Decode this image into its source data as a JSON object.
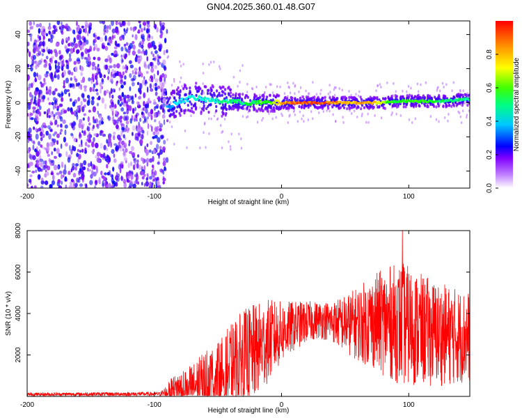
{
  "figure": {
    "title": "GN04.2025.360.01.48.G07"
  },
  "chart_data": [
    {
      "type": "heatmap",
      "title": "GN04.2025.360.01.48.G07",
      "xlabel": "Height of straight line (km)",
      "ylabel": "Frequency (Hz)",
      "xlim": [
        -200,
        148
      ],
      "ylim": [
        -50,
        48
      ],
      "xticks": [
        -200,
        -100,
        0,
        100
      ],
      "yticks": [
        -40,
        -20,
        0,
        20,
        40
      ],
      "colorbar": {
        "label": "Normalized spectral amplitude",
        "range": [
          0,
          1
        ],
        "ticks": [
          0.0,
          0.2,
          0.4,
          0.6,
          0.8
        ],
        "tick_labels": [
          "0.0",
          "0.2",
          "0.4",
          "0.6",
          "0.8"
        ],
        "colormap": [
          "#ffffff",
          "#8000ff",
          "#0000ff",
          "#00ffff",
          "#00ff00",
          "#ffff00",
          "#ff8000",
          "#ff0000"
        ]
      },
      "regions": [
        {
          "name": "noise",
          "x_range": [
            -200,
            -90
          ],
          "freq_range": [
            -50,
            48
          ],
          "amplitude": 0.15
        },
        {
          "name": "signal-band",
          "x_range": [
            -90,
            148
          ],
          "center_freq": 0,
          "amplitude": 0.3
        }
      ],
      "ridge": [
        {
          "x": -88,
          "freq": -2,
          "amp": 0.4
        },
        {
          "x": -80,
          "freq": 1,
          "amp": 0.45
        },
        {
          "x": -70,
          "freq": 3,
          "amp": 0.48
        },
        {
          "x": -60,
          "freq": 2,
          "amp": 0.5
        },
        {
          "x": -50,
          "freq": 1,
          "amp": 0.5
        },
        {
          "x": -40,
          "freq": 1,
          "amp": 0.55
        },
        {
          "x": -30,
          "freq": 0,
          "amp": 0.55
        },
        {
          "x": -20,
          "freq": 0,
          "amp": 0.6
        },
        {
          "x": -10,
          "freq": 0,
          "amp": 0.65
        },
        {
          "x": 0,
          "freq": 0,
          "amp": 0.85
        },
        {
          "x": 10,
          "freq": 0,
          "amp": 0.95
        },
        {
          "x": 20,
          "freq": 0,
          "amp": 1.0
        },
        {
          "x": 30,
          "freq": 0,
          "amp": 0.98
        },
        {
          "x": 40,
          "freq": 0,
          "amp": 0.92
        },
        {
          "x": 50,
          "freq": 0,
          "amp": 0.85
        },
        {
          "x": 60,
          "freq": 0,
          "amp": 0.88
        },
        {
          "x": 70,
          "freq": 0,
          "amp": 0.9
        },
        {
          "x": 80,
          "freq": 0,
          "amp": 0.7
        },
        {
          "x": 90,
          "freq": 1,
          "amp": 0.6
        },
        {
          "x": 100,
          "freq": 1,
          "amp": 0.62
        },
        {
          "x": 110,
          "freq": 1,
          "amp": 0.65
        },
        {
          "x": 120,
          "freq": 1,
          "amp": 0.6
        },
        {
          "x": 130,
          "freq": 1,
          "amp": 0.55
        },
        {
          "x": 140,
          "freq": 2,
          "amp": 0.55
        },
        {
          "x": 148,
          "freq": 2,
          "amp": 0.5
        }
      ]
    },
    {
      "type": "line",
      "xlabel": "Height of straight line (km)",
      "ylabel": "SNR (10 * v/v)",
      "xlim": [
        -200,
        148
      ],
      "ylim": [
        0,
        8000
      ],
      "xticks": [
        -200,
        -100,
        0,
        100
      ],
      "yticks": [
        2000,
        4000,
        6000,
        8000
      ],
      "series": [
        {
          "name": "SNR",
          "color": "#ff0000",
          "envelope": [
            {
              "x": -200,
              "base": 100,
              "amp": 80
            },
            {
              "x": -95,
              "base": 120,
              "amp": 100
            },
            {
              "x": -85,
              "base": 300,
              "amp": 700
            },
            {
              "x": -70,
              "base": 500,
              "amp": 1100
            },
            {
              "x": -60,
              "base": 700,
              "amp": 1500
            },
            {
              "x": -50,
              "base": 900,
              "amp": 1700
            },
            {
              "x": -40,
              "base": 1300,
              "amp": 2200
            },
            {
              "x": -30,
              "base": 1800,
              "amp": 2400
            },
            {
              "x": -20,
              "base": 2200,
              "amp": 2300
            },
            {
              "x": -10,
              "base": 2700,
              "amp": 2000
            },
            {
              "x": 0,
              "base": 3100,
              "amp": 1500
            },
            {
              "x": 10,
              "base": 3400,
              "amp": 1200
            },
            {
              "x": 20,
              "base": 3600,
              "amp": 1000
            },
            {
              "x": 30,
              "base": 3700,
              "amp": 900
            },
            {
              "x": 40,
              "base": 3600,
              "amp": 1000
            },
            {
              "x": 50,
              "base": 3500,
              "amp": 1400
            },
            {
              "x": 60,
              "base": 3500,
              "amp": 1800
            },
            {
              "x": 70,
              "base": 3600,
              "amp": 2200
            },
            {
              "x": 80,
              "base": 3600,
              "amp": 2600
            },
            {
              "x": 95,
              "base": 3500,
              "amp": 3000
            },
            {
              "x": 110,
              "base": 3200,
              "amp": 2700
            },
            {
              "x": 125,
              "base": 3000,
              "amp": 2500
            },
            {
              "x": 140,
              "base": 2900,
              "amp": 2300
            },
            {
              "x": 148,
              "base": 2900,
              "amp": 2200
            }
          ],
          "peak": {
            "x": 95,
            "y": 8000
          }
        }
      ]
    }
  ]
}
